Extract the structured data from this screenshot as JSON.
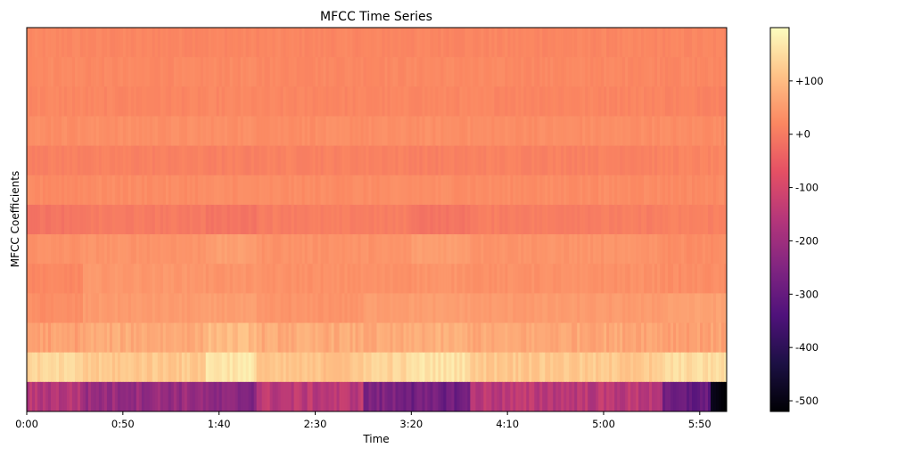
{
  "chart_data": {
    "type": "heatmap",
    "title": "MFCC Time Series",
    "xlabel": "Time",
    "ylabel": "MFCC Coefficients",
    "x_range_seconds": [
      0,
      364
    ],
    "x_ticks": [
      {
        "label": "0:00",
        "seconds": 0
      },
      {
        "label": "0:50",
        "seconds": 50
      },
      {
        "label": "1:40",
        "seconds": 100
      },
      {
        "label": "2:30",
        "seconds": 150
      },
      {
        "label": "3:20",
        "seconds": 200
      },
      {
        "label": "4:10",
        "seconds": 250
      },
      {
        "label": "5:00",
        "seconds": 300
      },
      {
        "label": "5:50",
        "seconds": 350
      }
    ],
    "num_coefficients": 13,
    "coefficient_order": "top row = highest coefficient, bottom row = coefficient 0",
    "colormap": "magma",
    "colorbar": {
      "range": [
        -520,
        200
      ],
      "ticks": [
        {
          "label": "+100",
          "value": 100
        },
        {
          "label": "+0",
          "value": 0
        },
        {
          "label": "-100",
          "value": -100
        },
        {
          "label": "-200",
          "value": -200
        },
        {
          "label": "-300",
          "value": -300
        },
        {
          "label": "-400",
          "value": -400
        },
        {
          "label": "-500",
          "value": -500
        }
      ]
    },
    "segment_boundaries_seconds": [
      0,
      29,
      93,
      120,
      175,
      200,
      230,
      330,
      364
    ],
    "row_mean_values_by_segment": [
      [
        20,
        18,
        18,
        18,
        18,
        18,
        18,
        18
      ],
      [
        25,
        22,
        24,
        22,
        22,
        24,
        22,
        20
      ],
      [
        20,
        18,
        20,
        18,
        18,
        20,
        18,
        15
      ],
      [
        30,
        32,
        32,
        30,
        30,
        32,
        30,
        28
      ],
      [
        10,
        10,
        8,
        12,
        12,
        8,
        12,
        15
      ],
      [
        25,
        28,
        30,
        28,
        28,
        30,
        28,
        25
      ],
      [
        -10,
        0,
        -10,
        5,
        5,
        -10,
        5,
        10
      ],
      [
        35,
        40,
        55,
        38,
        38,
        55,
        40,
        30
      ],
      [
        20,
        45,
        40,
        35,
        35,
        40,
        35,
        30
      ],
      [
        30,
        50,
        55,
        40,
        55,
        55,
        50,
        60
      ],
      [
        60,
        75,
        100,
        75,
        70,
        80,
        70,
        60
      ],
      [
        140,
        120,
        165,
        110,
        140,
        160,
        120,
        150
      ],
      [
        -160,
        -210,
        -240,
        -150,
        -260,
        -280,
        -150,
        -300
      ]
    ]
  }
}
